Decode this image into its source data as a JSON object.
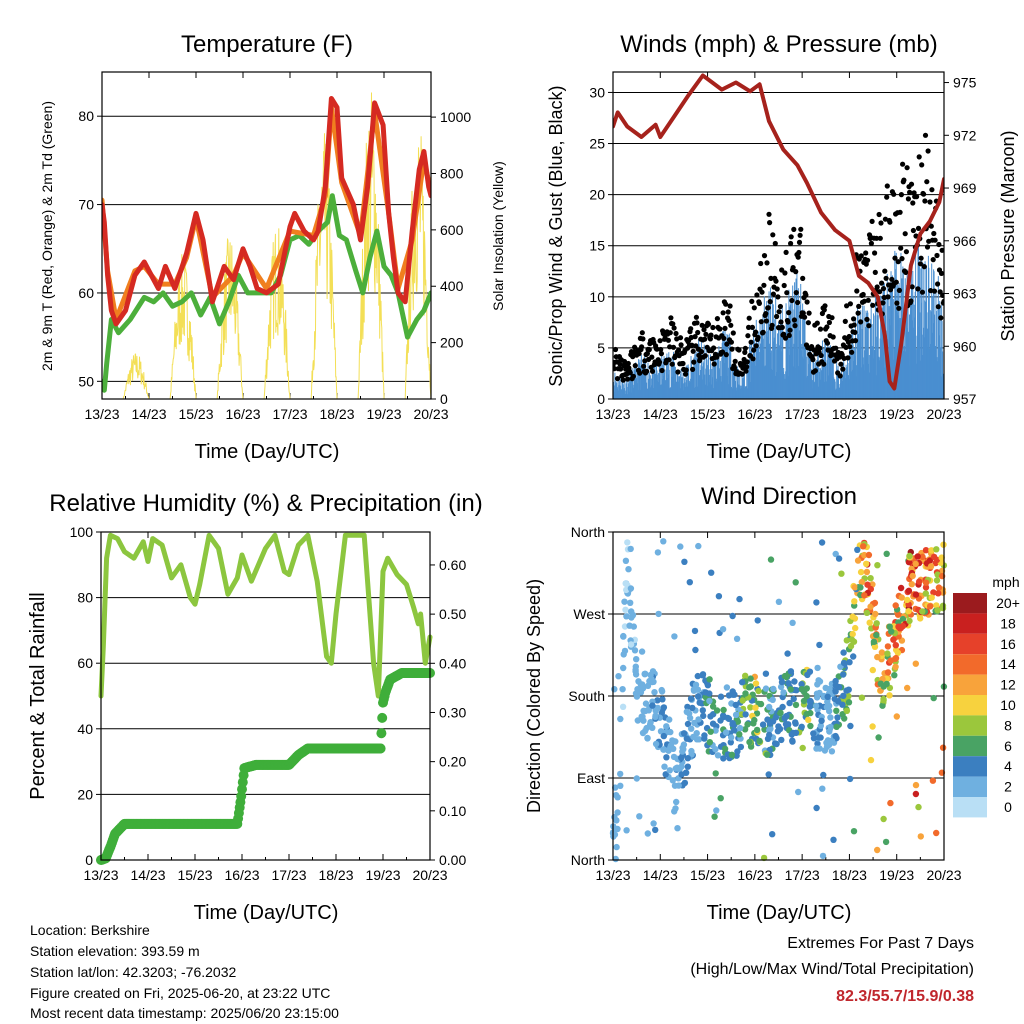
{
  "colors": {
    "red": "#d52a22",
    "orange": "#f07f1f",
    "green": "#4caf3b",
    "yellow": "#f3df56",
    "black": "#000000",
    "blue": "#4a8fd0",
    "maroon": "#a6221c",
    "rh": "#8cc63f",
    "precip": "#3fae3a",
    "extremes": "#c0272d"
  },
  "time_ticks": [
    "13/23",
    "14/23",
    "15/23",
    "16/23",
    "17/23",
    "18/23",
    "19/23",
    "20/23"
  ],
  "panels": {
    "temperature": {
      "title": "Temperature (F)",
      "xlabel": "Time (Day/UTC)",
      "ylabel_left": "2m & 9m T (Red, Orange) & 2m Td (Green)",
      "ylabel_right": "Solar Insolation (Yellow)"
    },
    "winds": {
      "title": "Winds (mph) & Pressure (mb)",
      "xlabel": "Time (Day/UTC)",
      "ylabel_left": "Sonic/Prop Wind & Gust (Blue, Black)",
      "ylabel_right": "Station Pressure (Maroon)"
    },
    "humidity": {
      "title": "Relative Humidity (%) & Precipitation (in)",
      "xlabel": "Time (Day/UTC)",
      "ylabel_left": "Percent & Total Rainfall"
    },
    "direction": {
      "title": "Wind Direction",
      "xlabel": "Time (Day/UTC)",
      "ylabel_left": "Direction (Colored By Speed)"
    }
  },
  "legend": {
    "unit": "mph",
    "labels": [
      "20+",
      "18",
      "16",
      "14",
      "12",
      "10",
      "8",
      "6",
      "4",
      "2",
      "0"
    ],
    "colors": [
      "#9b1b1e",
      "#c9201f",
      "#e6412a",
      "#f26a2b",
      "#f8a33b",
      "#f7d23e",
      "#9bc73c",
      "#49a364",
      "#3b7fc0",
      "#6fb0e0",
      "#b9dff5"
    ]
  },
  "chart_data": [
    {
      "type": "line",
      "title": "Temperature (F)",
      "xlabel": "Time (Day/UTC)",
      "ylabel": "2m & 9m T (Red, Orange) & 2m Td (Green)",
      "y2label": "Solar Insolation (Yellow)",
      "x_ticks": [
        "13/23",
        "14/23",
        "15/23",
        "16/23",
        "17/23",
        "18/23",
        "19/23",
        "20/23"
      ],
      "xlim": [
        0,
        7
      ],
      "ylim": [
        48,
        85
      ],
      "y_ticks": [
        50,
        60,
        70,
        80
      ],
      "y2lim": [
        0,
        1160
      ],
      "y2_ticks": [
        0,
        200,
        400,
        600,
        800,
        1000
      ],
      "grid": "horizontal",
      "series": [
        {
          "name": "2m T",
          "color": "red",
          "axis": "left",
          "x": [
            0,
            0.05,
            0.12,
            0.2,
            0.3,
            0.5,
            0.7,
            0.9,
            1.0,
            1.2,
            1.35,
            1.55,
            1.8,
            2.0,
            2.15,
            2.35,
            2.6,
            2.8,
            3.0,
            3.15,
            3.3,
            3.5,
            3.75,
            4.0,
            4.1,
            4.3,
            4.5,
            4.6,
            4.75,
            4.88,
            5.0,
            5.1,
            5.35,
            5.5,
            5.65,
            5.8,
            5.98,
            6.1,
            6.2,
            6.3,
            6.45,
            6.6,
            6.75,
            6.85,
            6.95,
            7.0
          ],
          "y": [
            70,
            68,
            62,
            58,
            56.5,
            58,
            62,
            63.5,
            62.5,
            60.5,
            63,
            60.5,
            64.5,
            69,
            66,
            59,
            63,
            61.5,
            65,
            63,
            60.5,
            60,
            61,
            67.5,
            69,
            67,
            66,
            67,
            72,
            82,
            81,
            73,
            70,
            66,
            72,
            81.5,
            79,
            69,
            64,
            60,
            59,
            67,
            74,
            76,
            72,
            71
          ]
        },
        {
          "name": "9m T",
          "color": "orange",
          "axis": "left",
          "x": [
            0,
            0.12,
            0.3,
            0.7,
            0.9,
            1.2,
            1.55,
            1.8,
            2.0,
            2.35,
            2.8,
            3.0,
            3.5,
            4.0,
            4.5,
            4.75,
            4.88,
            5.1,
            5.5,
            5.8,
            6.1,
            6.3,
            6.6,
            6.85,
            7.0
          ],
          "y": [
            70.5,
            62.5,
            57,
            62.5,
            63,
            61,
            61,
            64,
            68.5,
            59.5,
            62,
            64.5,
            60.5,
            67,
            66.5,
            71,
            81,
            72.5,
            66.5,
            80.5,
            69,
            60.5,
            66,
            75,
            71.5
          ]
        },
        {
          "name": "2m Td",
          "color": "green",
          "axis": "left",
          "x": [
            0,
            0.05,
            0.1,
            0.2,
            0.35,
            0.6,
            0.9,
            1.1,
            1.3,
            1.5,
            1.7,
            1.9,
            2.1,
            2.3,
            2.5,
            2.7,
            2.9,
            3.1,
            3.3,
            3.6,
            3.8,
            4.0,
            4.2,
            4.4,
            4.6,
            4.8,
            4.9,
            5.05,
            5.2,
            5.4,
            5.55,
            5.7,
            5.85,
            6.0,
            6.15,
            6.3,
            6.5,
            6.7,
            6.85,
            7.0
          ],
          "y": [
            50,
            49,
            52,
            57,
            55.5,
            57,
            59.5,
            59,
            60,
            58.5,
            59,
            60,
            57.5,
            59.5,
            56.5,
            59,
            62,
            60,
            60,
            60,
            62,
            66,
            66.5,
            65.5,
            67,
            68,
            71,
            66.5,
            66,
            62.5,
            60,
            64,
            67,
            63,
            62,
            60,
            55,
            57,
            58,
            60
          ]
        },
        {
          "name": "Solar Insolation",
          "color": "yellow",
          "axis": "right",
          "days": [
            0,
            1,
            2,
            3,
            4,
            5,
            6
          ],
          "day_peaks": [
            170,
            520,
            600,
            640,
            950,
            1120,
            1020
          ]
        }
      ]
    },
    {
      "type": "scatter",
      "title": "Winds (mph) & Pressure (mb)",
      "xlabel": "Time (Day/UTC)",
      "ylabel": "Sonic/Prop Wind & Gust (Blue, Black)",
      "y2label": "Station Pressure (Maroon)",
      "x_ticks": [
        "13/23",
        "14/23",
        "15/23",
        "16/23",
        "17/23",
        "18/23",
        "19/23",
        "20/23"
      ],
      "xlim": [
        0,
        7
      ],
      "ylim": [
        0,
        32
      ],
      "y_ticks": [
        0,
        5,
        10,
        15,
        20,
        25,
        30
      ],
      "y2lim": [
        957,
        975.6
      ],
      "y2_ticks": [
        957,
        960,
        963,
        966,
        969,
        972,
        975
      ],
      "grid": "horizontal",
      "series": [
        {
          "name": "Wind",
          "color": "blue",
          "axis": "left",
          "x": [
            0,
            0.3,
            0.6,
            0.9,
            1.2,
            1.5,
            1.8,
            2.1,
            2.4,
            2.7,
            3.0,
            3.3,
            3.6,
            3.9,
            4.2,
            4.5,
            4.8,
            5.1,
            5.4,
            5.7,
            6.0,
            6.3,
            6.6,
            6.9,
            7.0
          ],
          "y": [
            2,
            1.5,
            3,
            2.5,
            3.5,
            2,
            4,
            3,
            5,
            1.5,
            5,
            8,
            6,
            9,
            3,
            4.5,
            2,
            6,
            7,
            8,
            10,
            9,
            12,
            8,
            6
          ]
        },
        {
          "name": "Gust",
          "color": "black",
          "axis": "left",
          "x": [
            0,
            0.3,
            0.6,
            0.9,
            1.2,
            1.5,
            1.8,
            2.1,
            2.4,
            2.7,
            3.0,
            3.3,
            3.6,
            3.9,
            4.2,
            4.5,
            4.8,
            5.1,
            5.4,
            5.7,
            6.0,
            6.3,
            6.6,
            6.9,
            7.0
          ],
          "y": [
            4,
            3,
            5,
            4.5,
            6,
            4,
            6,
            5,
            8,
            3,
            8,
            13,
            10,
            14,
            5,
            7,
            4,
            10,
            12,
            14,
            17,
            16,
            20,
            13,
            10
          ]
        },
        {
          "name": "Station Pressure",
          "color": "maroon",
          "axis": "right",
          "x": [
            0,
            0.1,
            0.3,
            0.6,
            0.9,
            1.0,
            1.3,
            1.6,
            1.9,
            2.0,
            2.3,
            2.6,
            2.9,
            3.1,
            3.3,
            3.6,
            3.9,
            4.1,
            4.4,
            4.7,
            5.0,
            5.2,
            5.4,
            5.6,
            5.75,
            5.85,
            5.95,
            6.1,
            6.3,
            6.5,
            6.7,
            6.9,
            7.0
          ],
          "y": [
            972.5,
            973.3,
            972.5,
            971.9,
            972.6,
            971.9,
            973.1,
            974.3,
            975.4,
            975.2,
            974.6,
            975.0,
            974.5,
            974.9,
            972.8,
            971.2,
            970.3,
            969.3,
            967.6,
            966.6,
            966.0,
            964.0,
            963.6,
            962.8,
            960.6,
            958.0,
            957.6,
            960.2,
            964.6,
            966.4,
            967.1,
            968.2,
            969.5
          ]
        }
      ]
    },
    {
      "type": "line",
      "title": "Relative Humidity (%) & Precipitation (in)",
      "xlabel": "Time (Day/UTC)",
      "ylabel": "Percent & Total Rainfall",
      "x_ticks": [
        "13/23",
        "14/23",
        "15/23",
        "16/23",
        "17/23",
        "18/23",
        "19/23",
        "20/23"
      ],
      "xlim": [
        0,
        7
      ],
      "ylim": [
        0,
        100
      ],
      "y_ticks": [
        0,
        20,
        40,
        60,
        80,
        100
      ],
      "y2lim": [
        0,
        0.667
      ],
      "y2_ticks": [
        "0.00",
        "0.10",
        "0.20",
        "0.30",
        "0.40",
        "0.50",
        "0.60"
      ],
      "grid": "horizontal",
      "series": [
        {
          "name": "Relative Humidity",
          "color": "rh",
          "axis": "left",
          "x": [
            0,
            0.05,
            0.12,
            0.2,
            0.35,
            0.5,
            0.7,
            0.9,
            1.0,
            1.1,
            1.3,
            1.5,
            1.7,
            1.9,
            2.0,
            2.1,
            2.3,
            2.5,
            2.7,
            2.9,
            3.0,
            3.2,
            3.5,
            3.7,
            3.9,
            4.0,
            4.2,
            4.4,
            4.6,
            4.8,
            4.9,
            5.0,
            5.2,
            5.4,
            5.6,
            5.8,
            5.9,
            6.0,
            6.1,
            6.3,
            6.5,
            6.65,
            6.75,
            6.8,
            6.9,
            7.0
          ],
          "y": [
            50,
            65,
            92,
            99,
            98,
            94,
            92,
            97,
            91,
            98,
            96,
            86,
            90,
            80,
            78,
            84,
            99,
            95,
            81,
            86,
            93,
            85,
            95,
            99,
            88,
            87,
            96,
            99,
            85,
            62,
            60,
            75,
            99,
            99,
            99,
            60,
            50,
            88,
            92,
            87,
            84,
            77,
            72,
            75,
            60,
            68
          ]
        },
        {
          "name": "Total Rainfall",
          "color": "precip",
          "axis": "left",
          "x": [
            0,
            0.1,
            0.2,
            0.3,
            0.5,
            1.0,
            2.0,
            2.9,
            2.98,
            3.05,
            3.3,
            4.0,
            4.2,
            4.4,
            5.0,
            5.95,
            6.0,
            6.05,
            6.15,
            6.4,
            7.0
          ],
          "y": [
            0,
            0.5,
            4,
            8,
            11,
            11,
            11,
            11,
            19,
            28,
            29,
            29,
            32,
            34,
            34,
            34,
            48,
            51,
            55,
            57,
            57
          ]
        }
      ]
    },
    {
      "type": "scatter",
      "title": "Wind Direction",
      "xlabel": "Time (Day/UTC)",
      "ylabel": "Direction (Colored By Speed)",
      "x_ticks": [
        "13/23",
        "14/23",
        "15/23",
        "16/23",
        "17/23",
        "18/23",
        "19/23",
        "20/23"
      ],
      "xlim": [
        0,
        7
      ],
      "y_ticks": [
        "North",
        "East",
        "South",
        "West",
        "North"
      ],
      "ylim": [
        0,
        360
      ],
      "grid": "horizontal",
      "series": [
        {
          "name": "Direction",
          "color_by": "speed",
          "x": [
            0.1,
            0.3,
            0.5,
            0.8,
            1.0,
            1.3,
            1.5,
            1.8,
            2.0,
            2.3,
            2.6,
            2.8,
            3.0,
            3.3,
            3.6,
            3.9,
            4.1,
            4.3,
            4.6,
            4.8,
            5.0,
            5.2,
            5.4,
            5.7,
            6.0,
            6.3,
            6.6,
            6.9
          ],
          "y": [
            40,
            330,
            180,
            170,
            160,
            90,
            120,
            170,
            160,
            150,
            150,
            160,
            165,
            150,
            170,
            165,
            175,
            160,
            150,
            180,
            210,
            330,
            300,
            190,
            250,
            300,
            305,
            310
          ],
          "speed": [
            2,
            1,
            2,
            2,
            3,
            2,
            3,
            3,
            4,
            4,
            4,
            6,
            8,
            4,
            4,
            5,
            7,
            3,
            2,
            5,
            6,
            10,
            12,
            9,
            12,
            13,
            12,
            11
          ]
        }
      ]
    }
  ],
  "extremes": {
    "title": "Extremes For Past 7 Days",
    "subtitle": "(High/Low/Max Wind/Total Precipitation)",
    "values": "82.3/55.7/15.9/0.38"
  },
  "station": {
    "location": "Location: Berkshire",
    "elevation": "Station elevation: 393.59 m",
    "latlon": "Station lat/lon: 42.3203; -76.2032",
    "created": "Figure created on Fri, 2025-06-20, at 23:22 UTC",
    "recent": "Most recent data timestamp: 2025/06/20 23:15:00"
  }
}
